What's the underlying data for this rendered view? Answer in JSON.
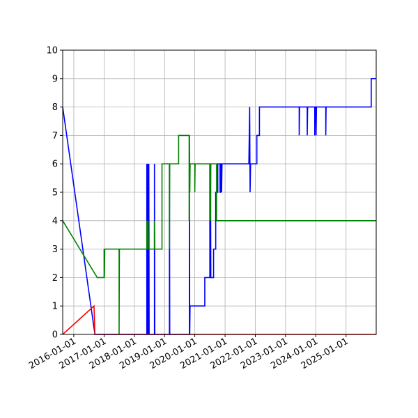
{
  "chart_data": {
    "type": "line",
    "title": "",
    "xlabel": "",
    "ylabel": "",
    "x_axis": "date",
    "xlim": [
      "2015-08-20",
      "2025-12-31"
    ],
    "ylim": [
      0,
      10
    ],
    "grid": true,
    "legend": "none",
    "x_ticks": [
      "2016-01-01",
      "2017-01-01",
      "2018-01-01",
      "2019-01-01",
      "2020-01-01",
      "2021-01-01",
      "2022-01-01",
      "2023-01-01",
      "2024-01-01",
      "2025-01-01"
    ],
    "y_ticks": [
      0,
      1,
      2,
      3,
      4,
      5,
      6,
      7,
      8,
      9,
      10
    ],
    "series": [
      {
        "color": "#0000ff",
        "points": [
          [
            "2015-08-20",
            8
          ],
          [
            "2016-09-12",
            0
          ],
          [
            "2018-06-01",
            0
          ],
          [
            "2018-06-01",
            6
          ],
          [
            "2018-06-05",
            0
          ],
          [
            "2018-06-09",
            6
          ],
          [
            "2018-06-13",
            0
          ],
          [
            "2018-06-17",
            6
          ],
          [
            "2018-06-21",
            0
          ],
          [
            "2018-06-25",
            6
          ],
          [
            "2018-06-29",
            0
          ],
          [
            "2018-09-01",
            0
          ],
          [
            "2018-09-01",
            6
          ],
          [
            "2018-09-05",
            0
          ],
          [
            "2019-03-01",
            0
          ],
          [
            "2019-03-01",
            6
          ],
          [
            "2019-03-05",
            0
          ],
          [
            "2019-10-28",
            0
          ],
          [
            "2019-10-28",
            6
          ],
          [
            "2019-11-01",
            0
          ],
          [
            "2019-11-05",
            1
          ],
          [
            "2020-05-01",
            1
          ],
          [
            "2020-05-01",
            2
          ],
          [
            "2020-07-01",
            2
          ],
          [
            "2020-07-01",
            6
          ],
          [
            "2020-07-05",
            2
          ],
          [
            "2020-07-09",
            6
          ],
          [
            "2020-07-13",
            2
          ],
          [
            "2020-08-15",
            2
          ],
          [
            "2020-08-15",
            3
          ],
          [
            "2020-09-10",
            3
          ],
          [
            "2020-09-10",
            5
          ],
          [
            "2020-10-05",
            5
          ],
          [
            "2020-10-05",
            6
          ],
          [
            "2020-11-01",
            6
          ],
          [
            "2020-11-01",
            5
          ],
          [
            "2020-11-10",
            5
          ],
          [
            "2020-11-10",
            6
          ],
          [
            "2020-11-20",
            6
          ],
          [
            "2020-11-20",
            5
          ],
          [
            "2020-11-25",
            6
          ],
          [
            "2021-10-15",
            6
          ],
          [
            "2021-10-25",
            8
          ],
          [
            "2021-10-30",
            5
          ],
          [
            "2021-11-05",
            6
          ],
          [
            "2022-01-20",
            6
          ],
          [
            "2022-01-20",
            7
          ],
          [
            "2022-02-20",
            7
          ],
          [
            "2022-02-20",
            8
          ],
          [
            "2023-06-15",
            8
          ],
          [
            "2023-06-15",
            7
          ],
          [
            "2023-06-20",
            8
          ],
          [
            "2023-09-20",
            8
          ],
          [
            "2023-09-20",
            7
          ],
          [
            "2023-09-25",
            8
          ],
          [
            "2023-12-20",
            8
          ],
          [
            "2023-12-20",
            7
          ],
          [
            "2023-12-25",
            8
          ],
          [
            "2024-01-05",
            8
          ],
          [
            "2024-01-05",
            7
          ],
          [
            "2024-01-10",
            8
          ],
          [
            "2024-05-01",
            8
          ],
          [
            "2024-05-01",
            7
          ],
          [
            "2024-05-05",
            8
          ],
          [
            "2025-11-01",
            8
          ],
          [
            "2025-11-01",
            9
          ],
          [
            "2025-12-31",
            9
          ]
        ]
      },
      {
        "color": "#008000",
        "points": [
          [
            "2015-08-20",
            4
          ],
          [
            "2016-10-10",
            2
          ],
          [
            "2017-01-01",
            2
          ],
          [
            "2017-01-01",
            3
          ],
          [
            "2017-01-05",
            2
          ],
          [
            "2017-01-09",
            3
          ],
          [
            "2017-07-01",
            3
          ],
          [
            "2017-07-01",
            0
          ],
          [
            "2017-07-05",
            3
          ],
          [
            "2018-06-01",
            3
          ],
          [
            "2018-06-01",
            4
          ],
          [
            "2018-06-05",
            3
          ],
          [
            "2018-06-09",
            4
          ],
          [
            "2018-06-13",
            3
          ],
          [
            "2018-06-17",
            4
          ],
          [
            "2018-06-21",
            3
          ],
          [
            "2018-09-01",
            3
          ],
          [
            "2018-09-01",
            4
          ],
          [
            "2018-09-05",
            3
          ],
          [
            "2018-12-01",
            3
          ],
          [
            "2018-12-01",
            6
          ],
          [
            "2019-03-01",
            6
          ],
          [
            "2019-03-01",
            3
          ],
          [
            "2019-03-05",
            6
          ],
          [
            "2019-06-20",
            6
          ],
          [
            "2019-06-20",
            7
          ],
          [
            "2019-10-25",
            7
          ],
          [
            "2019-10-25",
            4
          ],
          [
            "2019-10-29",
            7
          ],
          [
            "2019-11-02",
            5
          ],
          [
            "2019-11-06",
            6
          ],
          [
            "2020-01-01",
            6
          ],
          [
            "2020-01-01",
            5
          ],
          [
            "2020-01-05",
            6
          ],
          [
            "2020-07-01",
            6
          ],
          [
            "2020-07-01",
            4
          ],
          [
            "2020-07-05",
            6
          ],
          [
            "2020-07-09",
            4
          ],
          [
            "2020-07-13",
            6
          ],
          [
            "2020-09-20",
            6
          ],
          [
            "2020-09-20",
            4
          ],
          [
            "2025-12-31",
            4
          ]
        ]
      },
      {
        "color": "#ff0000",
        "points": [
          [
            "2015-08-20",
            0
          ],
          [
            "2016-09-01",
            1
          ],
          [
            "2016-09-12",
            0
          ],
          [
            "2025-12-31",
            0
          ]
        ]
      }
    ]
  }
}
